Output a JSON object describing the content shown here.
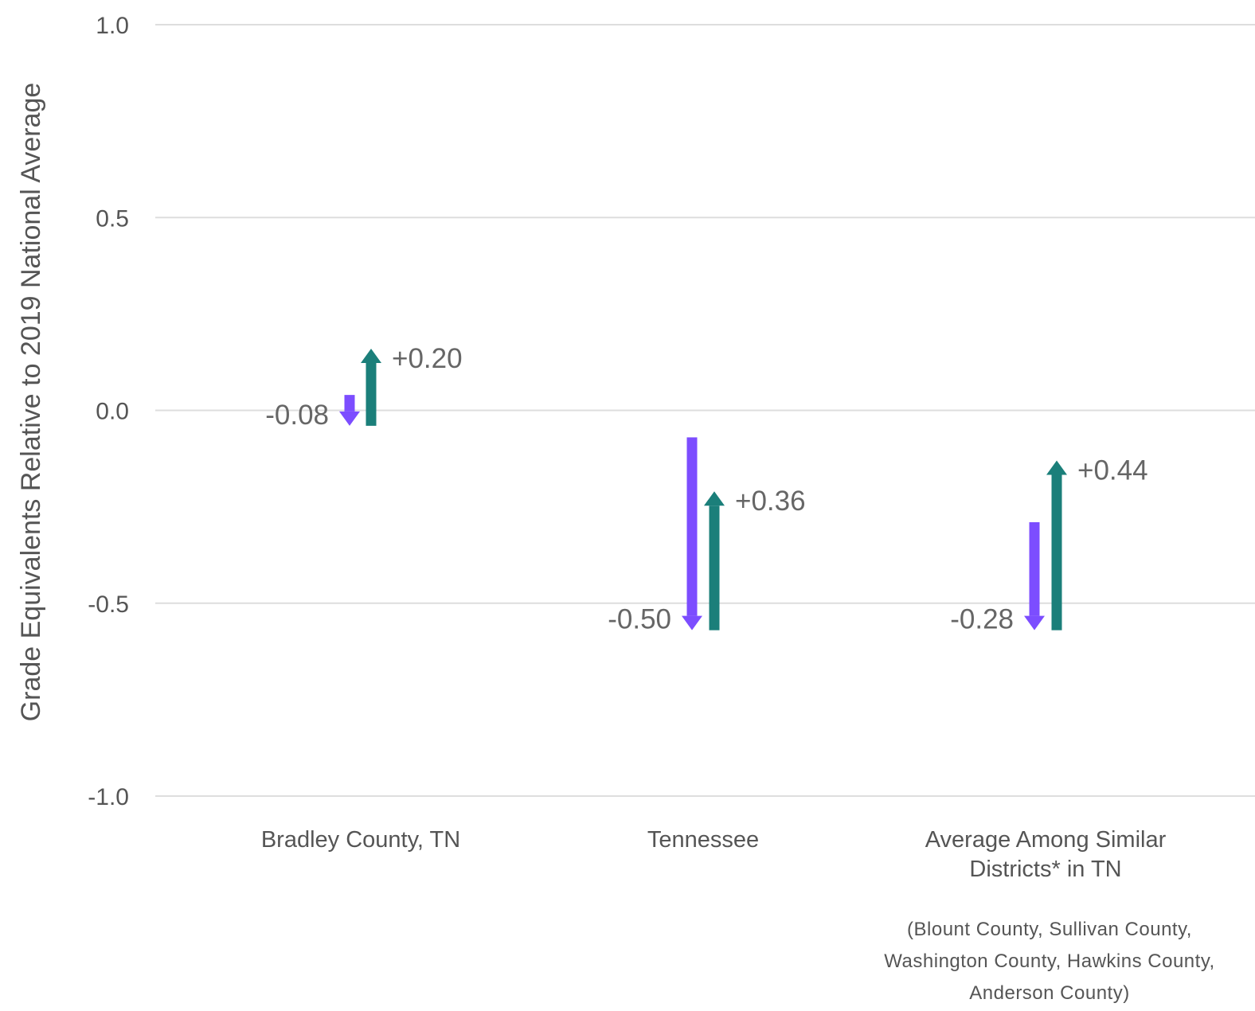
{
  "chart_data": {
    "type": "arrow",
    "ylabel": "Grade Equivalents Relative to 2019 National Average",
    "ylim": [
      -1.0,
      1.0
    ],
    "yticks": [
      1.0,
      0.5,
      0.0,
      -0.5,
      -1.0
    ],
    "ytick_labels": [
      "1.0",
      "0.5",
      "0.0",
      "-0.5",
      "-1.0"
    ],
    "grid": true,
    "colors": {
      "decline": "#7c4dff",
      "recovery": "#1b7f7a",
      "gridline": "#dedede",
      "text": "#555555"
    },
    "categories": [
      {
        "label_lines": [
          "Bradley County, TN"
        ],
        "note_lines": []
      },
      {
        "label_lines": [
          "Tennessee"
        ],
        "note_lines": []
      },
      {
        "label_lines": [
          "Average Among Similar",
          "Districts* in TN"
        ],
        "note_lines": [
          "(Blount County, Sullivan County,",
          "Washington County, Hawkins County,",
          "Anderson County)"
        ]
      }
    ],
    "series": [
      {
        "direction": "down",
        "starts": [
          0.04,
          -0.07,
          -0.29
        ],
        "ends": [
          -0.04,
          -0.57,
          -0.57
        ],
        "labels": [
          "-0.08",
          "-0.50",
          "-0.28"
        ]
      },
      {
        "direction": "up",
        "starts": [
          -0.04,
          -0.57,
          -0.57
        ],
        "ends": [
          0.16,
          -0.21,
          -0.13
        ],
        "labels": [
          "+0.20",
          "+0.36",
          "+0.44"
        ]
      }
    ]
  }
}
